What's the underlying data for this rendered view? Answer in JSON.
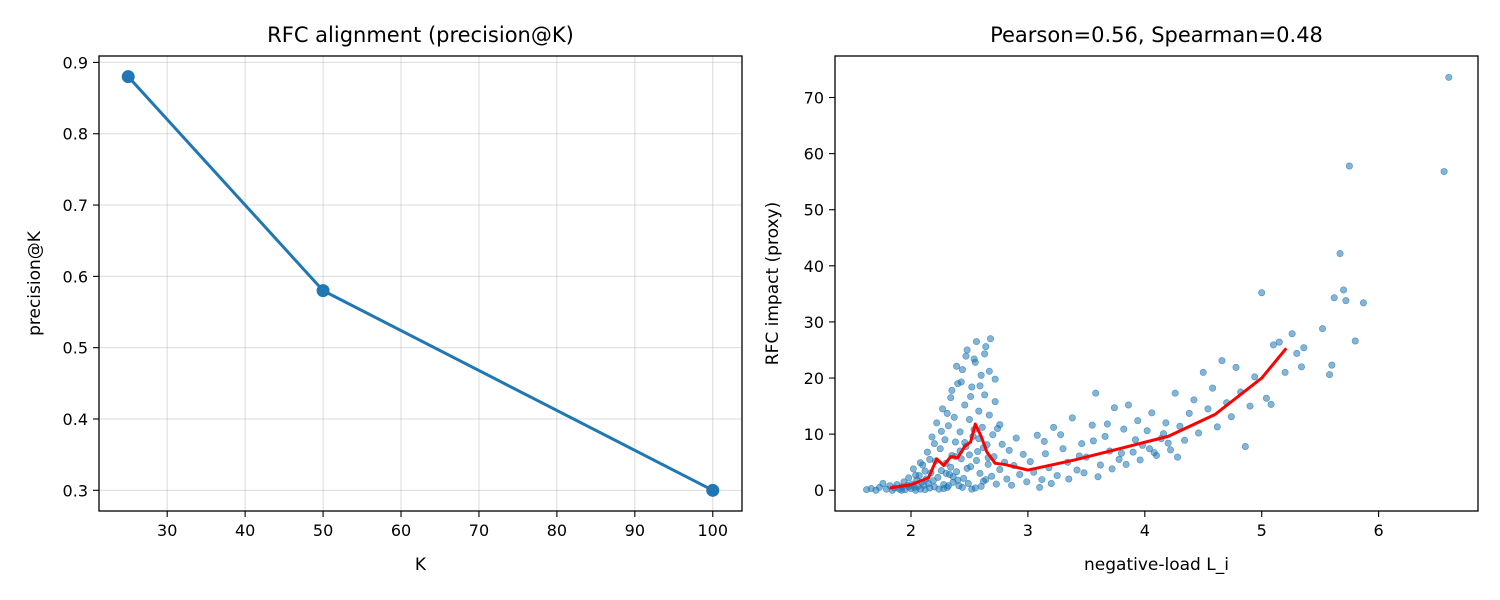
{
  "chart_data": [
    {
      "type": "line",
      "title": "RFC alignment (precision@K)",
      "xlabel": "K",
      "ylabel": "precision@K",
      "xlim": [
        21.25,
        103.75
      ],
      "ylim": [
        0.271,
        0.909
      ],
      "xticks": [
        30,
        40,
        50,
        60,
        70,
        80,
        90,
        100
      ],
      "yticks": [
        0.3,
        0.4,
        0.5,
        0.6,
        0.7,
        0.8,
        0.9
      ],
      "xtick_labels": [
        "30",
        "40",
        "50",
        "60",
        "70",
        "80",
        "90",
        "100"
      ],
      "ytick_labels": [
        "0.3",
        "0.4",
        "0.5",
        "0.6",
        "0.7",
        "0.8",
        "0.9"
      ],
      "grid": true,
      "series": [
        {
          "x": [
            25,
            50,
            100
          ],
          "y": [
            0.88,
            0.58,
            0.3
          ],
          "color": "#1f77b4",
          "marker": "circle"
        }
      ]
    },
    {
      "type": "scatter",
      "title": "Pearson=0.56, Spearman=0.48",
      "xlabel": "negative-load L_i",
      "ylabel": "RFC impact (proxy)",
      "xlim": [
        1.35,
        6.85
      ],
      "ylim": [
        -3.7,
        77.4
      ],
      "xticks": [
        2,
        3,
        4,
        5,
        6
      ],
      "yticks": [
        0,
        10,
        20,
        30,
        40,
        50,
        60,
        70
      ],
      "xtick_labels": [
        "2",
        "3",
        "4",
        "5",
        "6"
      ],
      "ytick_labels": [
        "0",
        "10",
        "20",
        "30",
        "40",
        "50",
        "60",
        "70"
      ],
      "grid": false,
      "scatter_color": "#1f77b4",
      "points": [
        [
          1.62,
          0.1
        ],
        [
          1.66,
          0.3
        ],
        [
          1.7,
          0.0
        ],
        [
          1.73,
          0.5
        ],
        [
          1.76,
          1.2
        ],
        [
          1.79,
          0.2
        ],
        [
          1.82,
          0.8
        ],
        [
          1.84,
          0.0
        ],
        [
          1.86,
          0.4
        ],
        [
          1.88,
          1.0
        ],
        [
          1.9,
          0.2
        ],
        [
          1.92,
          0.6
        ],
        [
          1.94,
          1.5
        ],
        [
          1.95,
          0.1
        ],
        [
          1.97,
          0.9
        ],
        [
          1.98,
          2.2
        ],
        [
          2.0,
          0.3
        ],
        [
          2.01,
          1.1
        ],
        [
          2.02,
          3.8
        ],
        [
          2.03,
          0.5
        ],
        [
          2.04,
          0.0
        ],
        [
          2.05,
          1.8
        ],
        [
          2.06,
          0.7
        ],
        [
          2.07,
          2.6
        ],
        [
          2.08,
          0.2
        ],
        [
          2.09,
          1.4
        ],
        [
          2.1,
          4.5
        ],
        [
          2.11,
          0.9
        ],
        [
          2.12,
          0.1
        ],
        [
          2.13,
          2.0
        ],
        [
          2.14,
          6.8
        ],
        [
          2.15,
          1.2
        ],
        [
          2.16,
          0.4
        ],
        [
          2.17,
          3.1
        ],
        [
          2.18,
          9.5
        ],
        [
          2.19,
          1.7
        ],
        [
          2.2,
          0.6
        ],
        [
          2.21,
          5.2
        ],
        [
          2.22,
          12.0
        ],
        [
          2.23,
          2.3
        ],
        [
          2.24,
          0.2
        ],
        [
          2.25,
          7.4
        ],
        [
          2.26,
          3.5
        ],
        [
          2.27,
          14.5
        ],
        [
          2.28,
          1.0
        ],
        [
          2.29,
          9.0
        ],
        [
          2.3,
          4.8
        ],
        [
          2.31,
          0.5
        ],
        [
          2.32,
          11.5
        ],
        [
          2.33,
          2.8
        ],
        [
          2.34,
          16.5
        ],
        [
          2.35,
          6.2
        ],
        [
          2.36,
          1.4
        ],
        [
          2.37,
          13.0
        ],
        [
          2.38,
          8.6
        ],
        [
          2.39,
          3.3
        ],
        [
          2.4,
          19.0
        ],
        [
          2.41,
          0.8
        ],
        [
          2.42,
          10.4
        ],
        [
          2.43,
          5.6
        ],
        [
          2.44,
          21.5
        ],
        [
          2.45,
          2.1
        ],
        [
          2.46,
          15.2
        ],
        [
          2.47,
          7.8
        ],
        [
          2.48,
          25.0
        ],
        [
          2.49,
          1.2
        ],
        [
          2.5,
          12.6
        ],
        [
          2.51,
          4.2
        ],
        [
          2.52,
          18.4
        ],
        [
          2.53,
          9.6
        ],
        [
          2.54,
          23.4
        ],
        [
          2.55,
          0.4
        ],
        [
          2.56,
          26.5
        ],
        [
          2.57,
          6.9
        ],
        [
          2.58,
          14.1
        ],
        [
          2.59,
          3.0
        ],
        [
          2.6,
          20.5
        ],
        [
          2.61,
          11.2
        ],
        [
          2.62,
          1.6
        ],
        [
          2.63,
          17.0
        ],
        [
          2.64,
          25.6
        ],
        [
          2.65,
          8.1
        ],
        [
          2.66,
          4.6
        ],
        [
          2.67,
          13.4
        ],
        [
          2.68,
          27.0
        ],
        [
          2.69,
          2.5
        ],
        [
          2.7,
          9.9
        ],
        [
          2.71,
          6.0
        ],
        [
          2.72,
          15.8
        ],
        [
          2.73,
          1.1
        ],
        [
          2.74,
          11.0
        ],
        [
          2.76,
          3.7
        ],
        [
          2.78,
          8.2
        ],
        [
          2.8,
          5.0
        ],
        [
          2.82,
          2.0
        ],
        [
          2.84,
          7.1
        ],
        [
          2.86,
          0.9
        ],
        [
          2.88,
          4.4
        ],
        [
          2.9,
          9.3
        ],
        [
          2.93,
          2.8
        ],
        [
          2.96,
          6.4
        ],
        [
          2.99,
          1.5
        ],
        [
          3.02,
          5.1
        ],
        [
          3.05,
          3.2
        ],
        [
          3.08,
          9.8
        ],
        [
          3.12,
          1.9
        ],
        [
          3.15,
          6.5
        ],
        [
          3.18,
          4.0
        ],
        [
          3.22,
          11.2
        ],
        [
          3.25,
          2.6
        ],
        [
          3.3,
          7.4
        ],
        [
          3.34,
          5.0
        ],
        [
          3.38,
          12.9
        ],
        [
          3.42,
          3.6
        ],
        [
          3.46,
          8.3
        ],
        [
          3.5,
          5.9
        ],
        [
          3.55,
          11.6
        ],
        [
          3.58,
          17.3
        ],
        [
          3.62,
          4.5
        ],
        [
          3.66,
          9.6
        ],
        [
          3.7,
          7.0
        ],
        [
          3.74,
          14.7
        ],
        [
          3.78,
          5.5
        ],
        [
          3.82,
          10.9
        ],
        [
          3.86,
          15.2
        ],
        [
          3.9,
          6.8
        ],
        [
          3.94,
          12.4
        ],
        [
          3.98,
          8.0
        ],
        [
          4.02,
          10.6
        ],
        [
          4.06,
          13.8
        ],
        [
          4.1,
          6.2
        ],
        [
          4.14,
          9.2
        ],
        [
          4.18,
          12.0
        ],
        [
          4.22,
          7.2
        ],
        [
          4.26,
          17.3
        ],
        [
          4.3,
          11.4
        ],
        [
          4.34,
          8.9
        ],
        [
          4.38,
          13.7
        ],
        [
          4.42,
          16.1
        ],
        [
          4.46,
          10.2
        ],
        [
          4.5,
          21.0
        ],
        [
          4.54,
          14.5
        ],
        [
          4.58,
          18.2
        ],
        [
          4.62,
          11.3
        ],
        [
          4.66,
          23.1
        ],
        [
          4.7,
          15.6
        ],
        [
          4.74,
          13.1
        ],
        [
          4.78,
          21.9
        ],
        [
          4.82,
          17.5
        ],
        [
          4.86,
          7.8
        ],
        [
          4.9,
          15.0
        ],
        [
          4.94,
          20.2
        ],
        [
          5.0,
          35.2
        ],
        [
          5.04,
          16.4
        ],
        [
          5.08,
          15.3
        ],
        [
          5.1,
          25.9
        ],
        [
          5.15,
          26.4
        ],
        [
          5.2,
          21.0
        ],
        [
          5.26,
          27.9
        ],
        [
          5.3,
          24.4
        ],
        [
          5.34,
          22.0
        ],
        [
          5.36,
          25.4
        ],
        [
          5.52,
          28.8
        ],
        [
          5.58,
          20.6
        ],
        [
          5.6,
          22.3
        ],
        [
          5.62,
          34.3
        ],
        [
          5.67,
          42.2
        ],
        [
          5.7,
          35.7
        ],
        [
          5.72,
          33.8
        ],
        [
          5.75,
          57.8
        ],
        [
          5.8,
          26.6
        ],
        [
          5.87,
          33.4
        ],
        [
          6.56,
          56.8
        ],
        [
          6.6,
          73.6
        ],
        [
          2.28,
          0.3
        ],
        [
          2.32,
          0.8
        ],
        [
          2.36,
          2.4
        ],
        [
          2.4,
          1.8
        ],
        [
          2.44,
          0.5
        ],
        [
          2.48,
          3.9
        ],
        [
          2.52,
          0.2
        ],
        [
          2.56,
          5.3
        ],
        [
          2.6,
          0.7
        ],
        [
          2.64,
          1.9
        ],
        [
          2.3,
          3.0
        ],
        [
          2.34,
          4.1
        ],
        [
          2.38,
          6.0
        ],
        [
          2.42,
          7.0
        ],
        [
          2.46,
          8.5
        ],
        [
          2.5,
          6.3
        ],
        [
          2.54,
          10.8
        ],
        [
          2.58,
          9.2
        ],
        [
          2.62,
          7.6
        ],
        [
          2.66,
          5.8
        ],
        [
          2.26,
          10.5
        ],
        [
          2.31,
          13.7
        ],
        [
          2.35,
          17.8
        ],
        [
          2.39,
          22.1
        ],
        [
          2.43,
          19.3
        ],
        [
          2.47,
          23.9
        ],
        [
          2.51,
          16.7
        ],
        [
          2.55,
          22.8
        ],
        [
          2.59,
          18.6
        ],
        [
          2.63,
          24.3
        ],
        [
          2.67,
          21.2
        ],
        [
          2.72,
          19.8
        ],
        [
          2.76,
          11.7
        ],
        [
          2.2,
          8.3
        ],
        [
          2.16,
          5.5
        ],
        [
          2.12,
          3.4
        ],
        [
          2.08,
          4.9
        ],
        [
          2.04,
          2.7
        ],
        [
          1.98,
          0.6
        ],
        [
          1.92,
          0.0
        ],
        [
          3.1,
          0.5
        ],
        [
          3.2,
          1.2
        ],
        [
          3.35,
          2.0
        ],
        [
          3.48,
          3.1
        ],
        [
          3.6,
          2.4
        ],
        [
          3.72,
          3.8
        ],
        [
          3.84,
          4.6
        ],
        [
          3.96,
          5.4
        ],
        [
          4.08,
          6.7
        ],
        [
          4.2,
          8.4
        ],
        [
          3.14,
          8.7
        ],
        [
          3.28,
          9.9
        ],
        [
          3.44,
          6.1
        ],
        [
          3.56,
          8.8
        ],
        [
          3.68,
          11.8
        ],
        [
          3.8,
          6.6
        ],
        [
          3.92,
          9.0
        ],
        [
          4.04,
          7.4
        ],
        [
          4.16,
          10.1
        ],
        [
          4.28,
          5.9
        ]
      ],
      "trend": {
        "color": "#ff0000",
        "x": [
          1.82,
          2.0,
          2.15,
          2.22,
          2.28,
          2.34,
          2.4,
          2.46,
          2.51,
          2.55,
          2.6,
          2.65,
          2.72,
          2.8,
          3.0,
          3.4,
          3.8,
          4.2,
          4.6,
          5.0,
          5.21
        ],
        "y": [
          0.4,
          1.0,
          2.2,
          5.6,
          4.4,
          6.0,
          5.8,
          7.8,
          8.6,
          11.8,
          9.6,
          6.8,
          4.8,
          4.6,
          3.6,
          5.4,
          7.5,
          9.6,
          13.5,
          20.0,
          25.3
        ]
      }
    }
  ]
}
